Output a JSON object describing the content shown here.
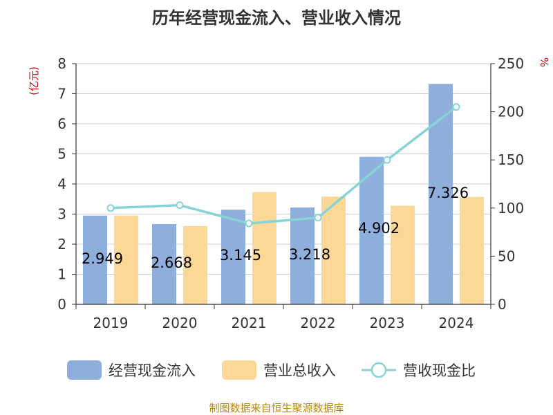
{
  "chart_data": {
    "type": "bar",
    "title": "历年经营现金流入、营业收入情况",
    "categories": [
      "2019",
      "2020",
      "2021",
      "2022",
      "2023",
      "2024"
    ],
    "left_axis": {
      "unit": "(亿元)",
      "ylim": [
        0,
        8
      ],
      "ticks": [
        "0",
        "1",
        "2",
        "3",
        "4",
        "5",
        "6",
        "7",
        "8"
      ]
    },
    "right_axis": {
      "unit": "%",
      "ylim": [
        0,
        250
      ],
      "ticks": [
        "0",
        "50",
        "100",
        "150",
        "200",
        "250"
      ]
    },
    "series": [
      {
        "name": "经营现金流入",
        "kind": "bar",
        "axis": "left",
        "color": "#8eaedb",
        "values": [
          2.949,
          2.668,
          3.145,
          3.218,
          4.902,
          7.326
        ],
        "labels": [
          "2.949",
          "2.668",
          "3.145",
          "3.218",
          "4.902",
          "7.326"
        ]
      },
      {
        "name": "营业总收入",
        "kind": "bar",
        "axis": "left",
        "color": "#fdd796",
        "values": [
          2.95,
          2.6,
          3.73,
          3.58,
          3.28,
          3.57
        ]
      },
      {
        "name": "营收现金比",
        "kind": "line",
        "axis": "right",
        "color": "#87d3d6",
        "values": [
          100,
          103,
          84,
          90,
          150,
          205
        ]
      }
    ],
    "grid": true,
    "legend": "bottom",
    "source": "制图数据来自恒生聚源数据库"
  }
}
